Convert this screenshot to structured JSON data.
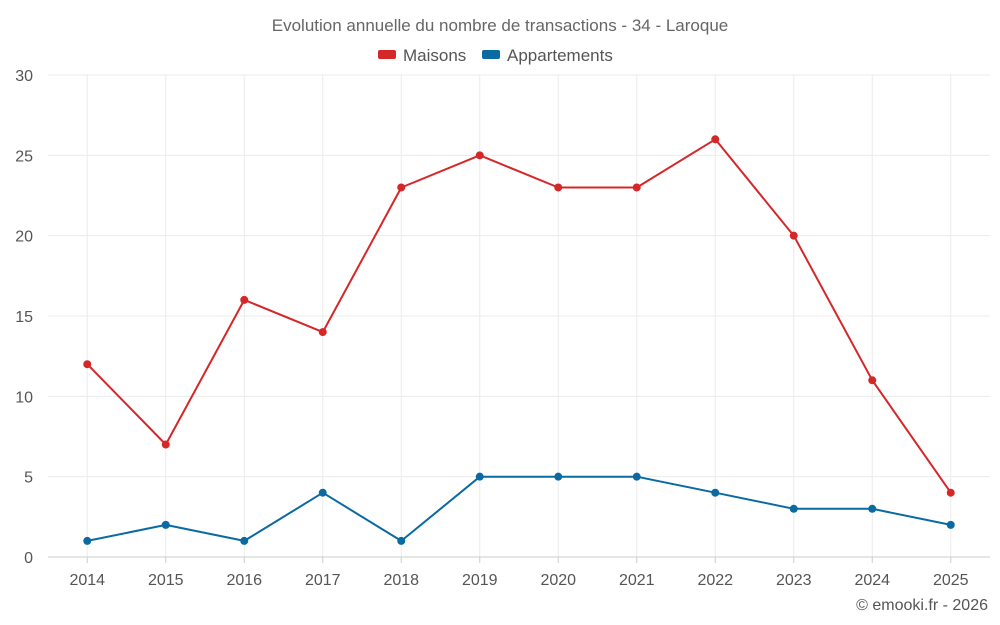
{
  "chart_data": {
    "type": "line",
    "title": "Evolution annuelle du nombre de transactions - 34 - Laroque",
    "categories": [
      "2014",
      "2015",
      "2016",
      "2017",
      "2018",
      "2019",
      "2020",
      "2021",
      "2022",
      "2023",
      "2024",
      "2025"
    ],
    "series": [
      {
        "name": "Maisons",
        "color": "#d62728",
        "values": [
          12,
          7,
          16,
          14,
          23,
          25,
          23,
          23,
          26,
          20,
          11,
          4
        ]
      },
      {
        "name": "Appartements",
        "color": "#0a6aa1",
        "values": [
          1,
          2,
          1,
          4,
          1,
          5,
          5,
          5,
          4,
          3,
          3,
          2
        ]
      }
    ],
    "ylim": [
      0,
      30
    ],
    "yticks": [
      "0",
      "5",
      "10",
      "15",
      "20",
      "25",
      "30"
    ],
    "xlabel": "",
    "ylabel": "",
    "grid": true,
    "legend_position": "top-center"
  },
  "credit": "© emooki.fr - 2026"
}
